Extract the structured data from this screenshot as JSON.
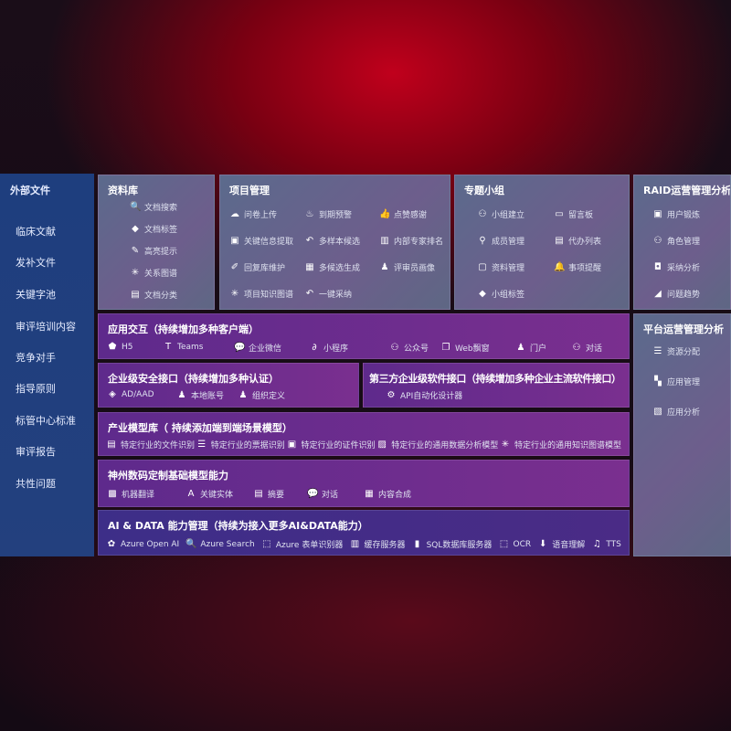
{
  "sidebar": {
    "title": "外部文件",
    "items": [
      "临床文献",
      "发补文件",
      "关键字池",
      "审评培训内容",
      "竞争对手",
      "指导原则",
      "标管中心标准",
      "审评报告",
      "共性问题"
    ]
  },
  "panels": [
    {
      "id": "library",
      "title": "资料库",
      "style": "grey",
      "cols": 1,
      "items": [
        {
          "icon": "doc-search-icon",
          "glyph": "🔍",
          "label": "文档搜索"
        },
        {
          "icon": "tag-icon",
          "glyph": "◆",
          "label": "文档标签"
        },
        {
          "icon": "pen-icon",
          "glyph": "✎",
          "label": "高亮提示"
        },
        {
          "icon": "graph-icon",
          "glyph": "✳",
          "label": "关系图谱"
        },
        {
          "icon": "doc-stack-icon",
          "glyph": "▤",
          "label": "文档分类"
        }
      ]
    },
    {
      "id": "project",
      "title": "项目管理",
      "style": "grey",
      "cols": 3,
      "items": [
        {
          "icon": "cloud-upload-icon",
          "glyph": "☁",
          "label": "问卷上传"
        },
        {
          "icon": "alarm-icon",
          "glyph": "♨",
          "label": "到期预警"
        },
        {
          "icon": "thumbs-up-icon",
          "glyph": "👍",
          "label": "点赞感谢"
        },
        {
          "icon": "window-icon",
          "glyph": "▣",
          "label": "关键信息提取"
        },
        {
          "icon": "reply-icon",
          "glyph": "↶",
          "label": "多样本候选"
        },
        {
          "icon": "ranking-icon",
          "glyph": "▥",
          "label": "内部专家排名"
        },
        {
          "icon": "edit-icon",
          "glyph": "✐",
          "label": "回复库维护"
        },
        {
          "icon": "puzzle-icon",
          "glyph": "▦",
          "label": "多候选生成"
        },
        {
          "icon": "user-icon",
          "glyph": "♟",
          "label": "评审员画像"
        },
        {
          "icon": "graph-icon",
          "glyph": "✳",
          "label": "项目知识图谱"
        },
        {
          "icon": "reply-icon",
          "glyph": "↶",
          "label": "一键采纳"
        }
      ]
    },
    {
      "id": "group",
      "title": "专题小组",
      "style": "grey",
      "cols": 2,
      "items": [
        {
          "icon": "group-icon",
          "glyph": "⚇",
          "label": "小组建立"
        },
        {
          "icon": "bbs-icon",
          "glyph": "▭",
          "label": "留言板"
        },
        {
          "icon": "user-add-icon",
          "glyph": "⚲",
          "label": "成员管理"
        },
        {
          "icon": "clipboard-icon",
          "glyph": "▤",
          "label": "代办列表"
        },
        {
          "icon": "folder-icon",
          "glyph": "▢",
          "label": "资料管理"
        },
        {
          "icon": "bell-icon",
          "glyph": "🔔",
          "label": "事项提醒"
        },
        {
          "icon": "tag-icon",
          "glyph": "◆",
          "label": "小组标签"
        }
      ]
    },
    {
      "id": "raid",
      "title": "RAID运营管理分析",
      "style": "grey",
      "cols": 1,
      "items": [
        {
          "icon": "id-card-icon",
          "glyph": "▣",
          "label": "用户锻炼"
        },
        {
          "icon": "users-icon",
          "glyph": "⚇",
          "label": "角色管理"
        },
        {
          "icon": "qa-icon",
          "glyph": "◘",
          "label": "采纳分析"
        },
        {
          "icon": "trend-icon",
          "glyph": "◢",
          "label": "问题趋势"
        }
      ]
    },
    {
      "id": "platform",
      "title": "平台运营管理分析",
      "style": "grey",
      "cols": 1,
      "items": [
        {
          "icon": "list-icon",
          "glyph": "☰",
          "label": "资源分配"
        },
        {
          "icon": "apps-icon",
          "glyph": "▚",
          "label": "应用管理"
        },
        {
          "icon": "chart-icon",
          "glyph": "▧",
          "label": "应用分析"
        }
      ]
    },
    {
      "id": "apps",
      "title": "应用交互（持续增加多种客户端）",
      "style": "purple",
      "cols": 8,
      "items": [
        {
          "icon": "html5-icon",
          "glyph": "⬟",
          "label": "H5"
        },
        {
          "icon": "teams-icon",
          "glyph": "T",
          "label": "Teams"
        },
        {
          "icon": "wecom-icon",
          "glyph": "💬",
          "label": "企业微信"
        },
        {
          "icon": "miniprogram-icon",
          "glyph": "∂",
          "label": "小程序"
        },
        {
          "icon": "official-account-icon",
          "glyph": "⚇",
          "label": "公众号"
        },
        {
          "icon": "web-window-icon",
          "glyph": "❐",
          "label": "Web飘窗"
        },
        {
          "icon": "portal-icon",
          "glyph": "♟",
          "label": "门户"
        },
        {
          "icon": "chat-users-icon",
          "glyph": "⚇",
          "label": "对话"
        }
      ]
    },
    {
      "id": "security",
      "title": "企业级安全接口（持续增加多种认证）",
      "style": "purple",
      "cols": 3,
      "items": [
        {
          "icon": "ad-icon",
          "glyph": "◈",
          "label": "AD/AAD"
        },
        {
          "icon": "local-account-icon",
          "glyph": "♟",
          "label": "本地账号"
        },
        {
          "icon": "org-icon",
          "glyph": "♟",
          "label": "组织定义"
        }
      ]
    },
    {
      "id": "thirdparty",
      "title": "第三方企业级软件接口（持续增加多种企业主流软件接口）",
      "style": "purple",
      "cols": 1,
      "items": [
        {
          "icon": "gear-icon",
          "glyph": "⚙",
          "label": "API自动化设计器"
        }
      ]
    },
    {
      "id": "models",
      "title": "产业模型库（ 持续添加端到端场景模型）",
      "style": "purple",
      "cols": 5,
      "items": [
        {
          "icon": "file-icon",
          "glyph": "▤",
          "label": "特定行业的文件识别"
        },
        {
          "icon": "receipt-icon",
          "glyph": "☰",
          "label": "特定行业的票据识别"
        },
        {
          "icon": "id-card-icon",
          "glyph": "▣",
          "label": "特定行业的证件识别"
        },
        {
          "icon": "data-analysis-icon",
          "glyph": "▨",
          "label": "特定行业的通用数据分析模型"
        },
        {
          "icon": "graph-icon",
          "glyph": "✳",
          "label": "特定行业的通用知识图谱模型"
        }
      ]
    },
    {
      "id": "foundation",
      "title": "神州数码定制基础模型能力",
      "style": "purple",
      "cols": 5,
      "items": [
        {
          "icon": "translate-icon",
          "glyph": "▩",
          "label": "机器翻译"
        },
        {
          "icon": "entity-icon",
          "glyph": "A",
          "label": "关键实体"
        },
        {
          "icon": "summary-icon",
          "glyph": "▤",
          "label": "摘要"
        },
        {
          "icon": "chat-bubble-icon",
          "glyph": "💬",
          "label": "对话"
        },
        {
          "icon": "compose-icon",
          "glyph": "▦",
          "label": "内容合成"
        }
      ]
    },
    {
      "id": "aidata",
      "title": "AI & DATA 能力管理（持续为接入更多AI&DATA能力）",
      "style": "blue",
      "cols": 8,
      "items": [
        {
          "icon": "openai-icon",
          "glyph": "✿",
          "label": "Azure Open AI"
        },
        {
          "icon": "search-icon",
          "glyph": "🔍",
          "label": "Azure Search"
        },
        {
          "icon": "form-recognizer-icon",
          "glyph": "⬚",
          "label": "Azure 表单识别器"
        },
        {
          "icon": "cache-server-icon",
          "glyph": "▥",
          "label": "缓存服务器"
        },
        {
          "icon": "database-icon",
          "glyph": "▮",
          "label": "SQL数据库服务器"
        },
        {
          "icon": "ocr-icon",
          "glyph": "⬚",
          "label": "OCR"
        },
        {
          "icon": "speech-icon",
          "glyph": "⬇",
          "label": "语音理解"
        },
        {
          "icon": "tts-icon",
          "glyph": "♫",
          "label": "TTS"
        }
      ]
    }
  ]
}
